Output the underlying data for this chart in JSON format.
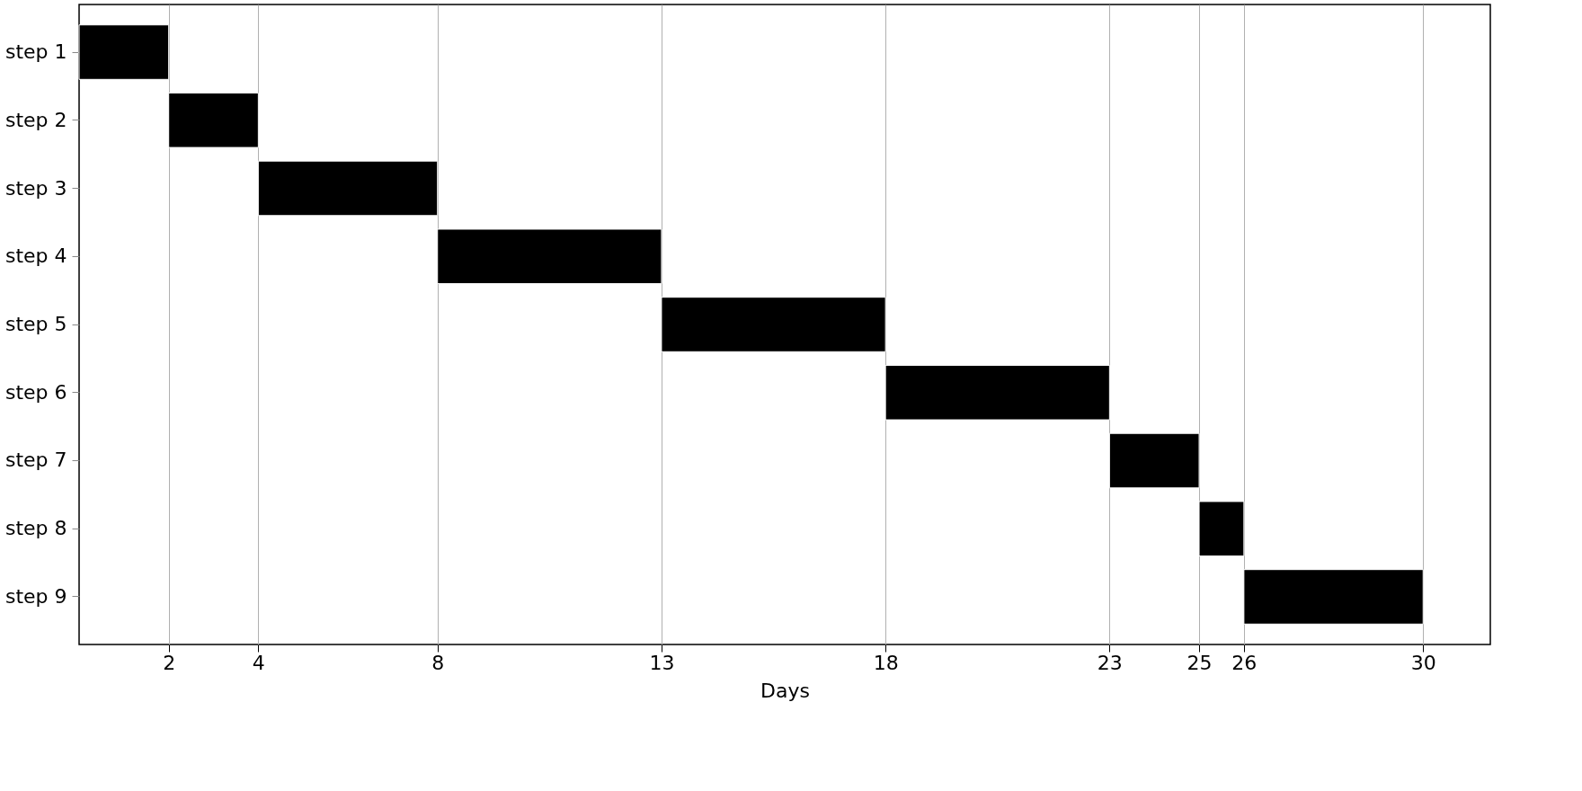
{
  "chart_data": {
    "type": "bar",
    "orientation": "horizontal",
    "xlabel": "Days",
    "categories": [
      "step 1",
      "step 2",
      "step 3",
      "step 4",
      "step 5",
      "step 6",
      "step 7",
      "step 8",
      "step 9"
    ],
    "base": [
      0,
      2,
      4,
      8,
      13,
      18,
      23,
      25,
      26
    ],
    "values": [
      2,
      2,
      4,
      5,
      5,
      5,
      2,
      1,
      4
    ],
    "color": "#000000",
    "xlim": [
      0,
      31.5
    ],
    "xticks": [
      2,
      4,
      8,
      13,
      18,
      23,
      25,
      26,
      30
    ],
    "grid": "x"
  }
}
